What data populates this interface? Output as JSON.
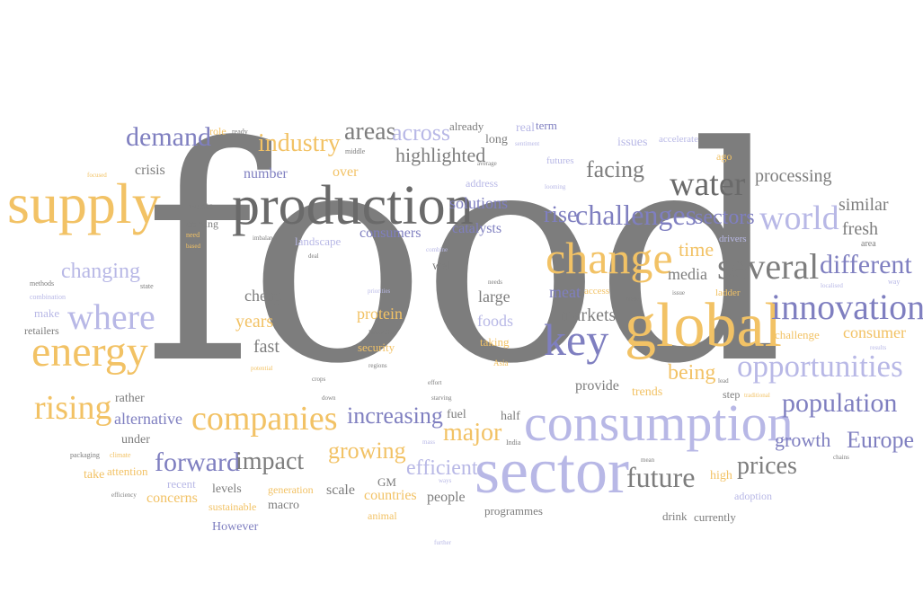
{
  "colors": {
    "gray": "#7d7d7d",
    "darkgray": "#6a6a6a",
    "yellow": "#f2c265",
    "purple": "#7f7fc0",
    "lavender": "#b8b8e6",
    "lightlav": "#cfcfee",
    "lightyellow": "#f6d9a2"
  },
  "words": [
    {
      "text": "food",
      "color": "gray"
    },
    {
      "text": "production",
      "color": "darkgray"
    },
    {
      "text": "supply",
      "color": "yellow"
    },
    {
      "text": "sector",
      "color": "lavender"
    },
    {
      "text": "consumption",
      "color": "lavender"
    },
    {
      "text": "global",
      "color": "yellow"
    },
    {
      "text": "change",
      "color": "yellow"
    },
    {
      "text": "energy",
      "color": "yellow"
    },
    {
      "text": "key",
      "color": "purple"
    },
    {
      "text": "innovation",
      "color": "purple"
    },
    {
      "text": "several",
      "color": "gray"
    },
    {
      "text": "companies",
      "color": "yellow"
    },
    {
      "text": "where",
      "color": "lavender"
    },
    {
      "text": "world",
      "color": "lavender"
    },
    {
      "text": "opportunities",
      "color": "lavender"
    },
    {
      "text": "water",
      "color": "darkgray"
    },
    {
      "text": "challenges",
      "color": "purple"
    },
    {
      "text": "different",
      "color": "purple"
    },
    {
      "text": "rising",
      "color": "yellow"
    },
    {
      "text": "population",
      "color": "purple"
    },
    {
      "text": "demand",
      "color": "purple"
    },
    {
      "text": "industry",
      "color": "yellow"
    },
    {
      "text": "forward",
      "color": "purple"
    },
    {
      "text": "future",
      "color": "gray"
    },
    {
      "text": "impact",
      "color": "gray"
    },
    {
      "text": "growing",
      "color": "yellow"
    },
    {
      "text": "areas",
      "color": "gray"
    },
    {
      "text": "prices",
      "color": "gray"
    },
    {
      "text": "major",
      "color": "yellow"
    },
    {
      "text": "efficient",
      "color": "lavender"
    },
    {
      "text": "increasing",
      "color": "purple"
    },
    {
      "text": "across",
      "color": "lavender"
    },
    {
      "text": "changing",
      "color": "lavender"
    },
    {
      "text": "Europe",
      "color": "purple"
    },
    {
      "text": "facing",
      "color": "gray"
    },
    {
      "text": "rise",
      "color": "purple"
    },
    {
      "text": "sectors",
      "color": "purple"
    },
    {
      "text": "highlighted",
      "color": "gray"
    },
    {
      "text": "being",
      "color": "yellow"
    },
    {
      "text": "growth",
      "color": "purple"
    },
    {
      "text": "alternative",
      "color": "purple"
    },
    {
      "text": "solutions",
      "color": "purple"
    },
    {
      "text": "fresh",
      "color": "gray"
    },
    {
      "text": "similar",
      "color": "gray"
    },
    {
      "text": "processing",
      "color": "gray"
    },
    {
      "text": "consumer",
      "color": "yellow"
    },
    {
      "text": "time",
      "color": "yellow"
    },
    {
      "text": "media",
      "color": "gray"
    },
    {
      "text": "markets",
      "color": "gray"
    },
    {
      "text": "meat",
      "color": "purple"
    },
    {
      "text": "foods",
      "color": "lavender"
    },
    {
      "text": "protein",
      "color": "yellow"
    },
    {
      "text": "cheap",
      "color": "gray"
    },
    {
      "text": "years",
      "color": "yellow"
    },
    {
      "text": "fast",
      "color": "gray"
    },
    {
      "text": "large",
      "color": "gray"
    },
    {
      "text": "catalysts",
      "color": "purple"
    },
    {
      "text": "consumers",
      "color": "purple"
    },
    {
      "text": "number",
      "color": "purple"
    },
    {
      "text": "over",
      "color": "yellow"
    },
    {
      "text": "crisis",
      "color": "gray"
    },
    {
      "text": "provide",
      "color": "gray"
    },
    {
      "text": "trends",
      "color": "yellow"
    },
    {
      "text": "countries",
      "color": "yellow"
    },
    {
      "text": "people",
      "color": "gray"
    },
    {
      "text": "scale",
      "color": "gray"
    },
    {
      "text": "concerns",
      "color": "yellow"
    },
    {
      "text": "levels",
      "color": "gray"
    },
    {
      "text": "macro",
      "color": "gray"
    },
    {
      "text": "However",
      "color": "purple"
    },
    {
      "text": "generation",
      "color": "yellow"
    },
    {
      "text": "sustainable",
      "color": "yellow"
    },
    {
      "text": "animal",
      "color": "yellow"
    },
    {
      "text": "programmes",
      "color": "gray"
    },
    {
      "text": "drink",
      "color": "gray"
    },
    {
      "text": "currently",
      "color": "gray"
    },
    {
      "text": "adoption",
      "color": "lavender"
    },
    {
      "text": "high",
      "color": "yellow"
    },
    {
      "text": "under",
      "color": "gray"
    },
    {
      "text": "take",
      "color": "yellow"
    },
    {
      "text": "attention",
      "color": "yellow"
    },
    {
      "text": "recent",
      "color": "lavender"
    },
    {
      "text": "rather",
      "color": "gray"
    },
    {
      "text": "fuel",
      "color": "gray"
    },
    {
      "text": "half",
      "color": "gray"
    },
    {
      "text": "GM",
      "color": "gray"
    },
    {
      "text": "security",
      "color": "yellow"
    },
    {
      "text": "taking",
      "color": "yellow"
    },
    {
      "text": "well",
      "color": "gray"
    },
    {
      "text": "landscape",
      "color": "lavender"
    },
    {
      "text": "waste",
      "color": "gray"
    },
    {
      "text": "coming",
      "color": "gray"
    },
    {
      "text": "make",
      "color": "lavender"
    },
    {
      "text": "retailers",
      "color": "gray"
    },
    {
      "text": "methods",
      "color": "gray"
    },
    {
      "text": "state",
      "color": "gray"
    },
    {
      "text": "combination",
      "color": "lavender"
    },
    {
      "text": "role",
      "color": "yellow"
    },
    {
      "text": "ready",
      "color": "gray"
    },
    {
      "text": "long",
      "color": "gray"
    },
    {
      "text": "already",
      "color": "gray"
    },
    {
      "text": "real",
      "color": "lavender"
    },
    {
      "text": "term",
      "color": "purple"
    },
    {
      "text": "issues",
      "color": "lavender"
    },
    {
      "text": "accelerate",
      "color": "lavender"
    },
    {
      "text": "ago",
      "color": "yellow"
    },
    {
      "text": "futures",
      "color": "lavender"
    },
    {
      "text": "address",
      "color": "lavender"
    },
    {
      "text": "middle",
      "color": "gray"
    },
    {
      "text": "sentiment",
      "color": "lavender"
    },
    {
      "text": "average",
      "color": "gray"
    },
    {
      "text": "looming",
      "color": "lavender"
    },
    {
      "text": "focused",
      "color": "yellow"
    },
    {
      "text": "need",
      "color": "yellow"
    },
    {
      "text": "imbalance",
      "color": "gray"
    },
    {
      "text": "based",
      "color": "yellow"
    },
    {
      "text": "deal",
      "color": "gray"
    },
    {
      "text": "combine",
      "color": "lavender"
    },
    {
      "text": "needs",
      "color": "gray"
    },
    {
      "text": "priorities",
      "color": "lavender"
    },
    {
      "text": "Innovation",
      "color": "gray"
    },
    {
      "text": "potential",
      "color": "yellow"
    },
    {
      "text": "regions",
      "color": "gray"
    },
    {
      "text": "crops",
      "color": "gray"
    },
    {
      "text": "down",
      "color": "gray"
    },
    {
      "text": "effort",
      "color": "gray"
    },
    {
      "text": "starving",
      "color": "gray"
    },
    {
      "text": "Asia",
      "color": "yellow"
    },
    {
      "text": "drivers",
      "color": "lavender"
    },
    {
      "text": "area",
      "color": "gray"
    },
    {
      "text": "way",
      "color": "lavender"
    },
    {
      "text": "localised",
      "color": "lavender"
    },
    {
      "text": "issue",
      "color": "gray"
    },
    {
      "text": "ladder",
      "color": "yellow"
    },
    {
      "text": "access",
      "color": "yellow"
    },
    {
      "text": "made",
      "color": "gray"
    },
    {
      "text": "challenge",
      "color": "yellow"
    },
    {
      "text": "results",
      "color": "lavender"
    },
    {
      "text": "lead",
      "color": "gray"
    },
    {
      "text": "step",
      "color": "gray"
    },
    {
      "text": "traditional",
      "color": "yellow"
    },
    {
      "text": "mean",
      "color": "gray"
    },
    {
      "text": "chains",
      "color": "gray"
    },
    {
      "text": "India",
      "color": "gray"
    },
    {
      "text": "mass",
      "color": "lavender"
    },
    {
      "text": "ways",
      "color": "lavender"
    },
    {
      "text": "packaging",
      "color": "gray"
    },
    {
      "text": "climate",
      "color": "yellow"
    },
    {
      "text": "efficiency",
      "color": "gray"
    },
    {
      "text": "further",
      "color": "lavender"
    }
  ]
}
